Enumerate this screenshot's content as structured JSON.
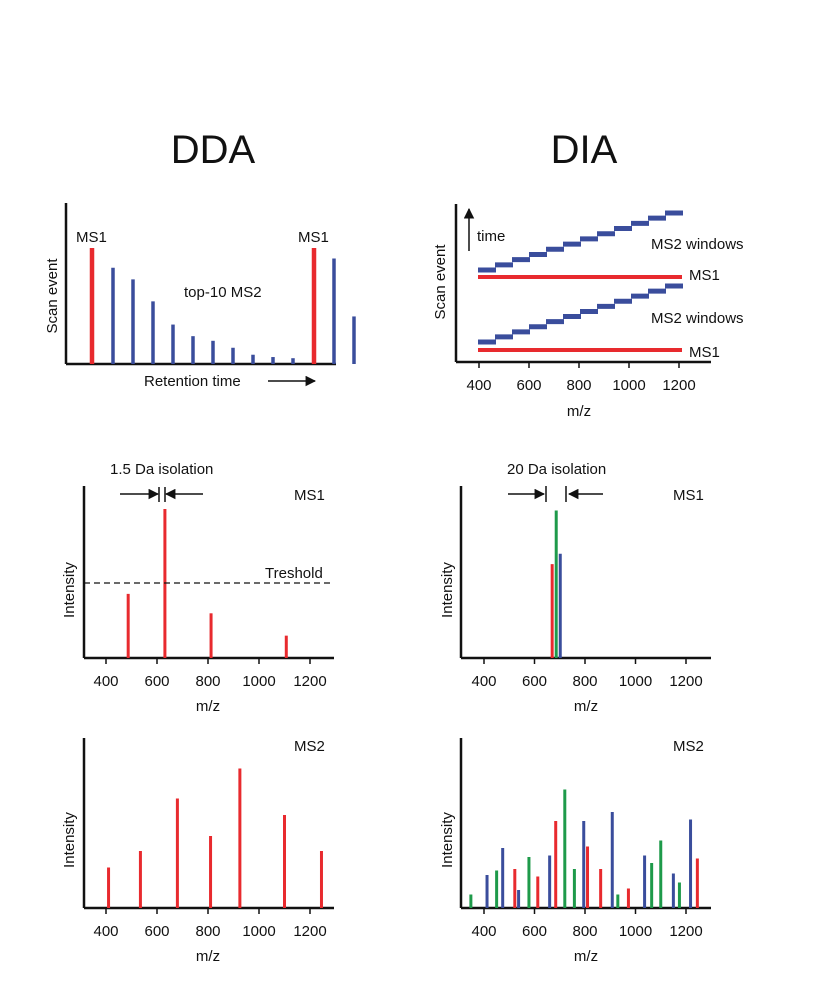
{
  "colors": {
    "red": "#e82a2e",
    "blue": "#3a4d9c",
    "green": "#1e9a4a",
    "axis": "#111111"
  },
  "headings": {
    "dda": "DDA",
    "dia": "DIA"
  },
  "scan_dda": {
    "ylabel": "Scan event",
    "xlabel": "Retention time",
    "ms1_label_left": "MS1",
    "ms1_label_right": "MS1",
    "annotation": "top-10 MS2",
    "ms1_heights": [
      1.0,
      1.0
    ],
    "ms2_heights": [
      0.83,
      0.73,
      0.54,
      0.34,
      0.24,
      0.2,
      0.14,
      0.08,
      0.06,
      0.05
    ],
    "tail_heights": [
      0.91,
      0.41
    ]
  },
  "scan_dia": {
    "ylabel": "Scan event",
    "xlabel": "m/z",
    "time_label": "time",
    "ticks": [
      "400",
      "600",
      "800",
      "1000",
      "1200"
    ],
    "ms2_label_1": "MS2 windows",
    "ms1_label_1": "MS1",
    "ms2_label_2": "MS2 windows",
    "ms1_label_2": "MS1",
    "mz_range": [
      400,
      1200
    ]
  },
  "ms1_dda": {
    "title": "MS1",
    "ylabel": "Intensity",
    "xlabel": "m/z",
    "isolation_label": "1.5 Da isolation",
    "threshold_label": "Treshold",
    "ticks": [
      "400",
      "600",
      "800",
      "1000",
      "1200"
    ],
    "peaks": [
      {
        "mz": 487,
        "intensity": 0.43
      },
      {
        "mz": 631,
        "intensity": 1.0
      },
      {
        "mz": 812,
        "intensity": 0.3
      },
      {
        "mz": 1107,
        "intensity": 0.15
      }
    ],
    "threshold": 0.5
  },
  "ms1_dia": {
    "title": "MS1",
    "ylabel": "Intensity",
    "xlabel": "m/z",
    "isolation_label": "20 Da isolation",
    "ticks": [
      "400",
      "600",
      "800",
      "1000",
      "1200"
    ],
    "peaks": [
      {
        "mz": 670,
        "intensity": 0.63,
        "color": "red"
      },
      {
        "mz": 686,
        "intensity": 0.99,
        "color": "green"
      },
      {
        "mz": 702,
        "intensity": 0.7,
        "color": "blue"
      }
    ]
  },
  "ms2_dda": {
    "title": "MS2",
    "ylabel": "Intensity",
    "xlabel": "m/z",
    "ticks": [
      "400",
      "600",
      "800",
      "1000",
      "1200"
    ],
    "peaks": [
      {
        "mz": 410,
        "intensity": 0.27
      },
      {
        "mz": 535,
        "intensity": 0.38
      },
      {
        "mz": 680,
        "intensity": 0.73
      },
      {
        "mz": 810,
        "intensity": 0.48
      },
      {
        "mz": 925,
        "intensity": 0.93
      },
      {
        "mz": 1100,
        "intensity": 0.62
      },
      {
        "mz": 1245,
        "intensity": 0.38
      }
    ]
  },
  "ms2_dia": {
    "title": "MS2",
    "ylabel": "Intensity",
    "xlabel": "m/z",
    "ticks": [
      "400",
      "600",
      "800",
      "1000",
      "1200"
    ],
    "peaks": [
      {
        "mz": 348,
        "intensity": 0.09,
        "color": "green"
      },
      {
        "mz": 412,
        "intensity": 0.22,
        "color": "blue"
      },
      {
        "mz": 450,
        "intensity": 0.25,
        "color": "green"
      },
      {
        "mz": 474,
        "intensity": 0.4,
        "color": "blue"
      },
      {
        "mz": 522,
        "intensity": 0.26,
        "color": "red"
      },
      {
        "mz": 537,
        "intensity": 0.12,
        "color": "blue"
      },
      {
        "mz": 578,
        "intensity": 0.34,
        "color": "green"
      },
      {
        "mz": 613,
        "intensity": 0.21,
        "color": "red"
      },
      {
        "mz": 660,
        "intensity": 0.35,
        "color": "blue"
      },
      {
        "mz": 684,
        "intensity": 0.58,
        "color": "red"
      },
      {
        "mz": 720,
        "intensity": 0.79,
        "color": "green"
      },
      {
        "mz": 758,
        "intensity": 0.26,
        "color": "green"
      },
      {
        "mz": 795,
        "intensity": 0.58,
        "color": "blue"
      },
      {
        "mz": 810,
        "intensity": 0.41,
        "color": "red"
      },
      {
        "mz": 862,
        "intensity": 0.26,
        "color": "red"
      },
      {
        "mz": 908,
        "intensity": 0.64,
        "color": "blue"
      },
      {
        "mz": 930,
        "intensity": 0.09,
        "color": "green"
      },
      {
        "mz": 972,
        "intensity": 0.13,
        "color": "red"
      },
      {
        "mz": 1036,
        "intensity": 0.35,
        "color": "blue"
      },
      {
        "mz": 1064,
        "intensity": 0.3,
        "color": "green"
      },
      {
        "mz": 1100,
        "intensity": 0.45,
        "color": "green"
      },
      {
        "mz": 1150,
        "intensity": 0.23,
        "color": "blue"
      },
      {
        "mz": 1174,
        "intensity": 0.17,
        "color": "green"
      },
      {
        "mz": 1218,
        "intensity": 0.59,
        "color": "blue"
      },
      {
        "mz": 1245,
        "intensity": 0.33,
        "color": "red"
      }
    ]
  }
}
